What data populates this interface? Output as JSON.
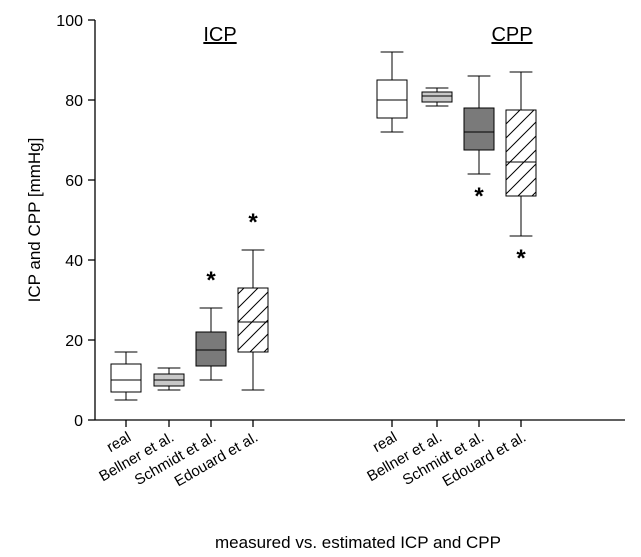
{
  "chart_data": {
    "type": "box",
    "title": "",
    "xlabel": "measured vs. estimated ICP and CPP",
    "ylabel": "ICP and CPP [mmHg]",
    "ylim": [
      0,
      100
    ],
    "yticks": [
      0,
      20,
      40,
      60,
      80,
      100
    ],
    "grid": false,
    "groups": [
      {
        "label": "ICP",
        "boxes": [
          {
            "category": "real",
            "whisker_low": 5,
            "q1": 7,
            "median": 10,
            "q3": 14,
            "whisker_high": 17,
            "fill": "white",
            "significant": false
          },
          {
            "category": "Bellner et al.",
            "whisker_low": 7.5,
            "q1": 8.5,
            "median": 10,
            "q3": 11.5,
            "whisker_high": 13,
            "fill": "lightgray",
            "significant": false
          },
          {
            "category": "Schmidt et al.",
            "whisker_low": 10,
            "q1": 13.5,
            "median": 17.5,
            "q3": 22,
            "whisker_high": 28,
            "fill": "darkgray",
            "significant": true
          },
          {
            "category": "Edouard et al.",
            "whisker_low": 7.5,
            "q1": 17,
            "median": 24.5,
            "q3": 33,
            "whisker_high": 42.5,
            "fill": "hatched",
            "significant": true
          }
        ]
      },
      {
        "label": "CPP",
        "boxes": [
          {
            "category": "real",
            "whisker_low": 72,
            "q1": 75.5,
            "median": 80,
            "q3": 85,
            "whisker_high": 92,
            "fill": "white",
            "significant": false
          },
          {
            "category": "Bellner et al.",
            "whisker_low": 78.5,
            "q1": 79.5,
            "median": 81,
            "q3": 82,
            "whisker_high": 83,
            "fill": "lightgray",
            "significant": false
          },
          {
            "category": "Schmidt et al.",
            "whisker_low": 61.5,
            "q1": 67.5,
            "median": 72,
            "q3": 78,
            "whisker_high": 86,
            "fill": "darkgray",
            "significant": true
          },
          {
            "category": "Edouard et al.",
            "whisker_low": 46,
            "q1": 56,
            "median": 64.5,
            "q3": 77.5,
            "whisker_high": 87,
            "fill": "hatched",
            "significant": true
          }
        ]
      }
    ],
    "significance_marker": "*",
    "colors": {
      "white": "#ffffff",
      "lightgray": "#c8c8c8",
      "darkgray": "#7a7a7a"
    }
  }
}
